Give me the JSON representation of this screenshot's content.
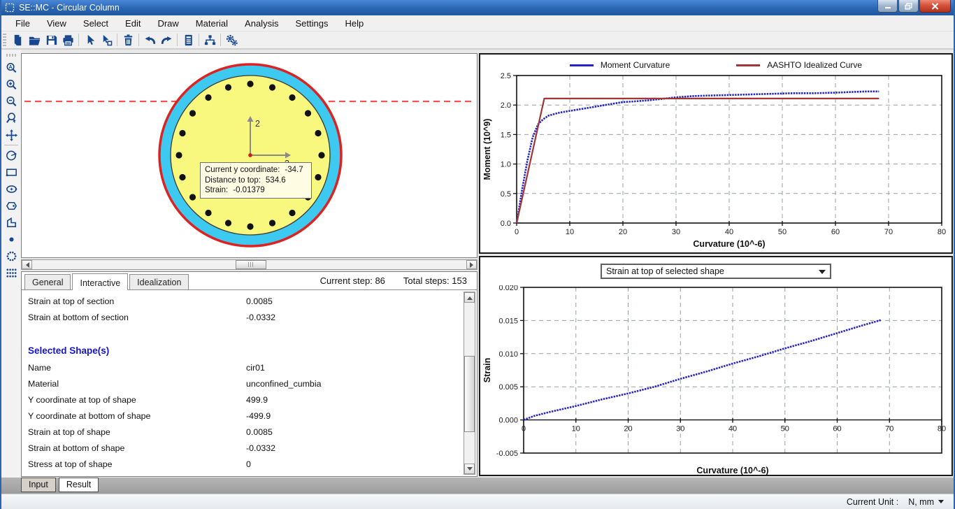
{
  "window": {
    "title": "SE::MC - Circular Column",
    "controls": [
      {
        "name": "minimize-button"
      },
      {
        "name": "restore-button"
      },
      {
        "name": "close-button"
      }
    ]
  },
  "menu": {
    "items": [
      "File",
      "View",
      "Select",
      "Edit",
      "Draw",
      "Material",
      "Analysis",
      "Settings",
      "Help"
    ]
  },
  "toolbar": {
    "items": [
      {
        "icon": "new-file-icon",
        "sep_after": false
      },
      {
        "icon": "open-file-icon",
        "sep_after": false
      },
      {
        "icon": "save-icon",
        "sep_after": false
      },
      {
        "icon": "print-icon",
        "sep_after": true
      },
      {
        "icon": "select-icon",
        "sep_after": false
      },
      {
        "icon": "select-shape-icon",
        "sep_after": true
      },
      {
        "icon": "delete-icon",
        "sep_after": true
      },
      {
        "icon": "undo-icon",
        "sep_after": false
      },
      {
        "icon": "redo-icon",
        "sep_after": true
      },
      {
        "icon": "report-icon",
        "sep_after": true
      },
      {
        "icon": "tree-view-icon",
        "sep_after": true
      },
      {
        "icon": "settings-gears-icon",
        "sep_after": false
      }
    ]
  },
  "palette": {
    "items": [
      {
        "icon": "zoom-extents-icon",
        "sep_after": false
      },
      {
        "icon": "zoom-in-icon",
        "sep_after": false
      },
      {
        "icon": "zoom-out-icon",
        "sep_after": false
      },
      {
        "icon": "zoom-dynamic-icon",
        "sep_after": false
      },
      {
        "icon": "pan-icon",
        "sep_after": true
      },
      {
        "icon": "circle-shape-icon",
        "sep_after": false
      },
      {
        "icon": "rectangle-shape-icon",
        "sep_after": false
      },
      {
        "icon": "ellipse-shape-icon",
        "sep_after": false
      },
      {
        "icon": "polygon-shape-icon",
        "sep_after": false
      },
      {
        "icon": "polyline-shape-icon",
        "sep_after": false
      },
      {
        "icon": "point-rebar-icon",
        "sep_after": false
      },
      {
        "icon": "circular-rebar-pattern-icon",
        "sep_after": false
      },
      {
        "icon": "grid-rebar-pattern-icon",
        "sep_after": false
      }
    ]
  },
  "section_view": {
    "rebar_count": 20,
    "axis_vertical_label": "2",
    "axis_horizontal_label": "3",
    "tooltip": {
      "lines": [
        {
          "label": "Current y coordinate:",
          "value": "-34.7"
        },
        {
          "label": "Distance to top:",
          "value": "534.6"
        },
        {
          "label": "Strain:",
          "value": "-0.01379"
        }
      ]
    },
    "colors": {
      "outer_ring_stroke": "#dd2222",
      "cover_fill": "#3ec9f0",
      "core_fill": "#f8f77e",
      "rebar_fill": "#111111",
      "neutral_axis": "#fb5050",
      "axis_gray": "#8a8a8a"
    }
  },
  "result_panel": {
    "tabs": [
      "General",
      "Interactive",
      "Idealization"
    ],
    "active_tab_index": 1,
    "current_step_label": "Current step:",
    "current_step_value": "86",
    "total_steps_label": "Total steps:",
    "total_steps_value": "153",
    "rows": [
      {
        "style": "normal",
        "label": "Strain at top of section",
        "value": "0.0085"
      },
      {
        "style": "normal",
        "label": "Strain at bottom of section",
        "value": "-0.0332"
      },
      {
        "style": "blank",
        "label": "",
        "value": ""
      },
      {
        "style": "heading",
        "label": "Selected Shape(s)",
        "value": ""
      },
      {
        "style": "normal",
        "label": "Name",
        "value": "cir01"
      },
      {
        "style": "normal",
        "label": "Material",
        "value": "unconfined_cumbia"
      },
      {
        "style": "normal",
        "label": "Y coordinate at top of shape",
        "value": "499.9"
      },
      {
        "style": "normal",
        "label": "Y coordinate at bottom of shape",
        "value": "-499.9"
      },
      {
        "style": "normal",
        "label": "Strain at top of shape",
        "value": "0.0085"
      },
      {
        "style": "normal",
        "label": "Strain at bottom of shape",
        "value": "-0.0332"
      },
      {
        "style": "normal",
        "label": "Stress at top of shape",
        "value": "0"
      }
    ]
  },
  "chart_selector": {
    "value": "Strain at top of selected shape"
  },
  "bottom_tabs": {
    "items": [
      "Input",
      "Result"
    ],
    "active_index": 1
  },
  "status_bar": {
    "unit_label": "Current Unit :",
    "unit_value": "N, mm"
  },
  "chart_data": [
    {
      "type": "line",
      "title": "",
      "xlabel": "Curvature (10^-6)",
      "ylabel": "Moment (10^9)",
      "xlim": [
        0,
        80
      ],
      "ylim": [
        0,
        2.5
      ],
      "xticks": [
        0,
        10,
        20,
        30,
        40,
        50,
        60,
        70,
        80
      ],
      "xticklabels": [
        "0",
        "10",
        "20",
        "30",
        "40",
        "50",
        "60",
        "70",
        "80"
      ],
      "yticks": [
        0,
        0.5,
        1.0,
        1.5,
        2.0,
        2.5
      ],
      "yticklabels": [
        "0.0",
        "0.5",
        "1.0",
        "1.5",
        "2.0",
        "2.5"
      ],
      "grid": true,
      "legend_position": "top",
      "series": [
        {
          "name": "Moment Curvature",
          "color": "#2121cd",
          "line_style": "marker-dense",
          "x": [
            0,
            1,
            2,
            3,
            4,
            5,
            6,
            8,
            10,
            12,
            14,
            16,
            18,
            20,
            22,
            25,
            28,
            30,
            33,
            36,
            40,
            44,
            48,
            52,
            56,
            60,
            63,
            66,
            68.2
          ],
          "y": [
            0,
            0.55,
            1.05,
            1.45,
            1.67,
            1.76,
            1.82,
            1.87,
            1.9,
            1.93,
            1.96,
            1.99,
            2.02,
            2.05,
            2.06,
            2.08,
            2.11,
            2.13,
            2.15,
            2.16,
            2.17,
            2.18,
            2.19,
            2.2,
            2.2,
            2.21,
            2.22,
            2.23,
            2.23
          ]
        },
        {
          "name": "AASHTO Idealized Curve",
          "color": "#a03636",
          "line_style": "solid",
          "x": [
            0,
            5.2,
            68.2
          ],
          "y": [
            0,
            2.11,
            2.11
          ]
        }
      ]
    },
    {
      "type": "line",
      "title": "",
      "xlabel": "Curvature (10^-6)",
      "ylabel": "Strain",
      "xlim": [
        0,
        80
      ],
      "ylim": [
        -0.005,
        0.02
      ],
      "xticks": [
        0,
        10,
        20,
        30,
        40,
        50,
        60,
        70,
        80
      ],
      "xticklabels": [
        "0",
        "10",
        "20",
        "30",
        "40",
        "50",
        "60",
        "70",
        "80"
      ],
      "yticks": [
        -0.005,
        0,
        0.005,
        0.01,
        0.015,
        0.02
      ],
      "yticklabels": [
        "-0.005",
        "0.000",
        "0.005",
        "0.010",
        "0.015",
        "0.020"
      ],
      "grid": true,
      "legend_position": "none",
      "series": [
        {
          "name": "Strain at top of selected shape",
          "color": "#2121cd",
          "line_style": "marker-dense",
          "x": [
            0,
            2,
            5,
            10,
            15,
            20,
            25,
            30,
            35,
            40,
            45,
            50,
            55,
            60,
            65,
            68.5
          ],
          "y": [
            0,
            0.0006,
            0.0012,
            0.0021,
            0.0031,
            0.004,
            0.005,
            0.0062,
            0.0073,
            0.0085,
            0.0096,
            0.0108,
            0.0119,
            0.0131,
            0.0143,
            0.0151
          ]
        }
      ]
    }
  ]
}
